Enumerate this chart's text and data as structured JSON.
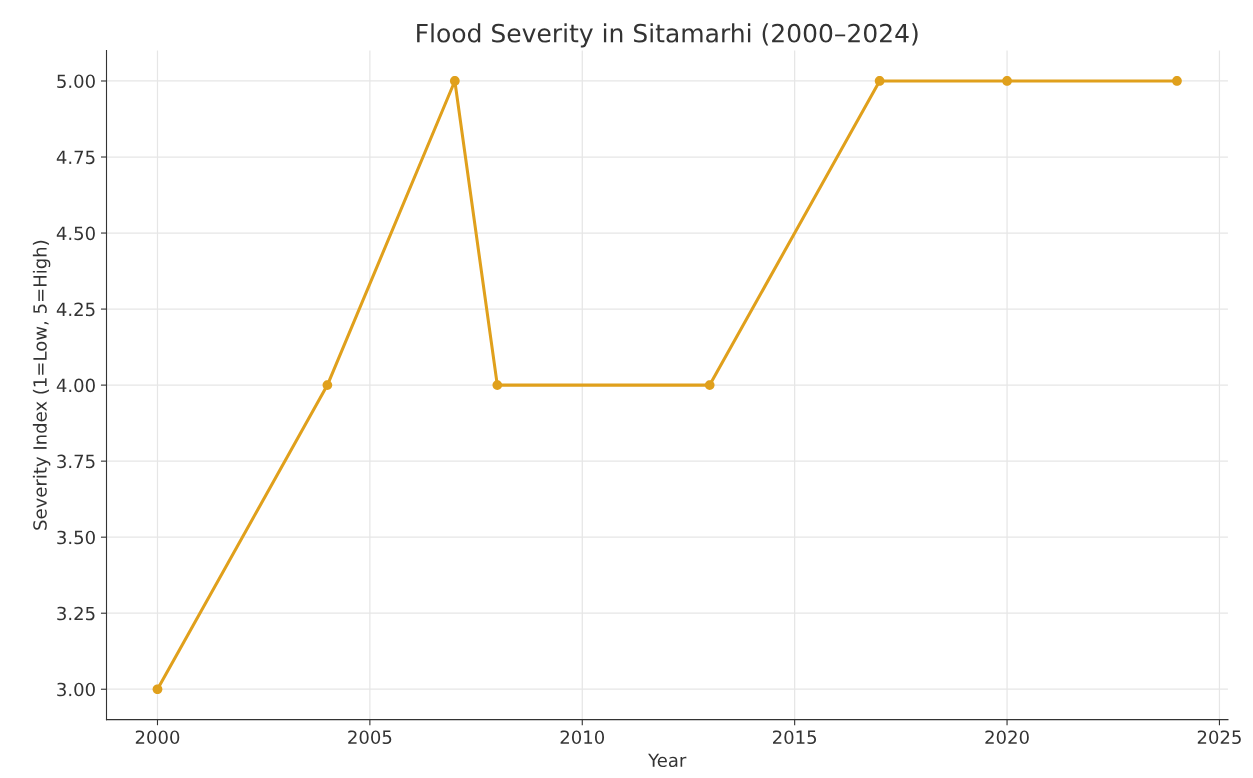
{
  "chart_data": {
    "type": "line",
    "title": "Flood Severity in Sitamarhi (2000–2024)",
    "xlabel": "Year",
    "ylabel": "Severity Index (1=Low, 5=High)",
    "x": [
      2000,
      2004,
      2007,
      2008,
      2013,
      2017,
      2020,
      2024
    ],
    "series": [
      {
        "color": "#e0a01c",
        "values": [
          3,
          4,
          5,
          4,
          4,
          5,
          5,
          5
        ]
      }
    ],
    "xlim": [
      1998.8,
      2025.2
    ],
    "xticks": [
      2000,
      2005,
      2010,
      2015,
      2020,
      2025
    ],
    "ylim": [
      2.9,
      5.1
    ],
    "yticks": [
      {
        "value": 3,
        "label": "3.00"
      },
      {
        "value": 3.25,
        "label": "3.25"
      },
      {
        "value": 3.5,
        "label": "3.50"
      },
      {
        "value": 3.75,
        "label": "3.75"
      },
      {
        "value": 4,
        "label": "4.00"
      },
      {
        "value": 4.25,
        "label": "4.25"
      },
      {
        "value": 4.5,
        "label": "4.50"
      },
      {
        "value": 4.75,
        "label": "4.75"
      },
      {
        "value": 5,
        "label": "5.00"
      }
    ],
    "grid": true,
    "marker": "circle",
    "line_style": "solid",
    "legend": false
  }
}
